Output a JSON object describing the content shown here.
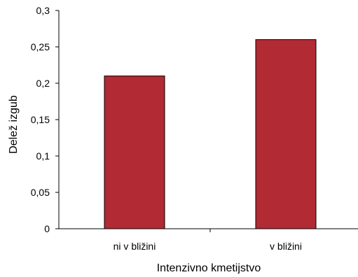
{
  "chart_data": {
    "type": "bar",
    "title": "",
    "xlabel": "Intenzivno kmetijstvo",
    "ylabel": "Delež izgub",
    "categories": [
      "ni v bližini",
      "v bližini"
    ],
    "values": [
      0.21,
      0.26
    ],
    "ylim": [
      0,
      0.3
    ],
    "yticks": [
      0,
      0.05,
      0.1,
      0.15,
      0.2,
      0.25,
      0.3
    ],
    "ytick_labels": [
      "0",
      "0,05",
      "0,1",
      "0,15",
      "0,2",
      "0,25",
      "0,3"
    ],
    "bar_color": "#b22a33",
    "bar_edge_color": "#000000",
    "grid": false,
    "legend": "none"
  }
}
